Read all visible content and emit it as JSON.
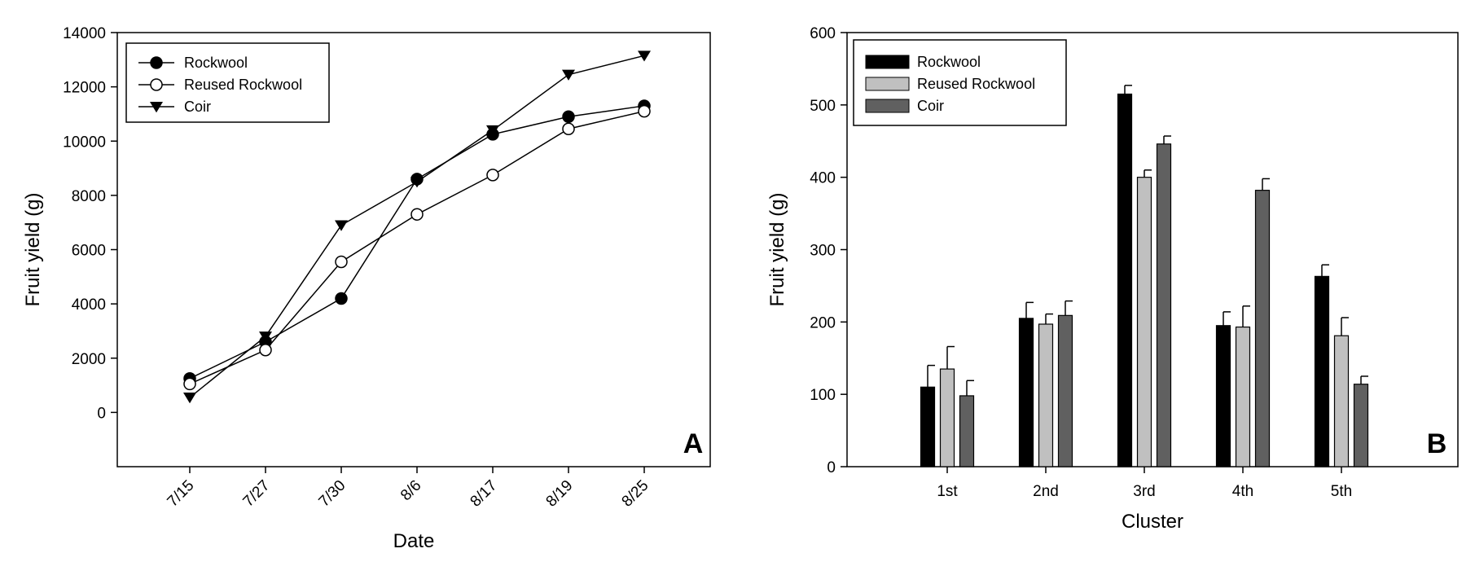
{
  "chart_data": [
    {
      "type": "line",
      "panel_label": "A",
      "xlabel": "Date",
      "ylabel": "Fruit yield (g)",
      "categories": [
        "7/15",
        "7/27",
        "7/30",
        "8/6",
        "8/17",
        "8/19",
        "8/25"
      ],
      "ylim": [
        -2000,
        14000
      ],
      "yticks": [
        0,
        2000,
        4000,
        6000,
        8000,
        10000,
        12000,
        14000
      ],
      "grid": false,
      "legend_position": "top-left",
      "series": [
        {
          "name": "Rockwool",
          "marker": "filled-circle",
          "values": [
            1250,
            2600,
            4200,
            8600,
            10250,
            10900,
            11300
          ]
        },
        {
          "name": "Reused Rockwool",
          "marker": "open-circle",
          "values": [
            1050,
            2300,
            5550,
            7300,
            8750,
            10450,
            11100
          ]
        },
        {
          "name": "Coir",
          "marker": "filled-triangle-down",
          "values": [
            550,
            2800,
            6900,
            8500,
            10400,
            12450,
            13150
          ]
        }
      ]
    },
    {
      "type": "bar",
      "panel_label": "B",
      "xlabel": "Cluster",
      "ylabel": "Fruit yield (g)",
      "categories": [
        "1st",
        "2nd",
        "3rd",
        "4th",
        "5th"
      ],
      "ylim": [
        0,
        600
      ],
      "yticks": [
        0,
        100,
        200,
        300,
        400,
        500,
        600
      ],
      "grid": false,
      "legend_position": "top-left",
      "series": [
        {
          "name": "Rockwool",
          "color": "#000000",
          "values": [
            110,
            205,
            515,
            195,
            263
          ],
          "errors": [
            30,
            22,
            12,
            19,
            16
          ]
        },
        {
          "name": "Reused Rockwool",
          "color": "#c0c0c0",
          "values": [
            135,
            197,
            400,
            193,
            181
          ],
          "errors": [
            31,
            14,
            10,
            29,
            25
          ]
        },
        {
          "name": "Coir",
          "color": "#606060",
          "values": [
            98,
            209,
            446,
            382,
            114
          ],
          "errors": [
            21,
            20,
            11,
            16,
            11
          ]
        }
      ]
    }
  ]
}
